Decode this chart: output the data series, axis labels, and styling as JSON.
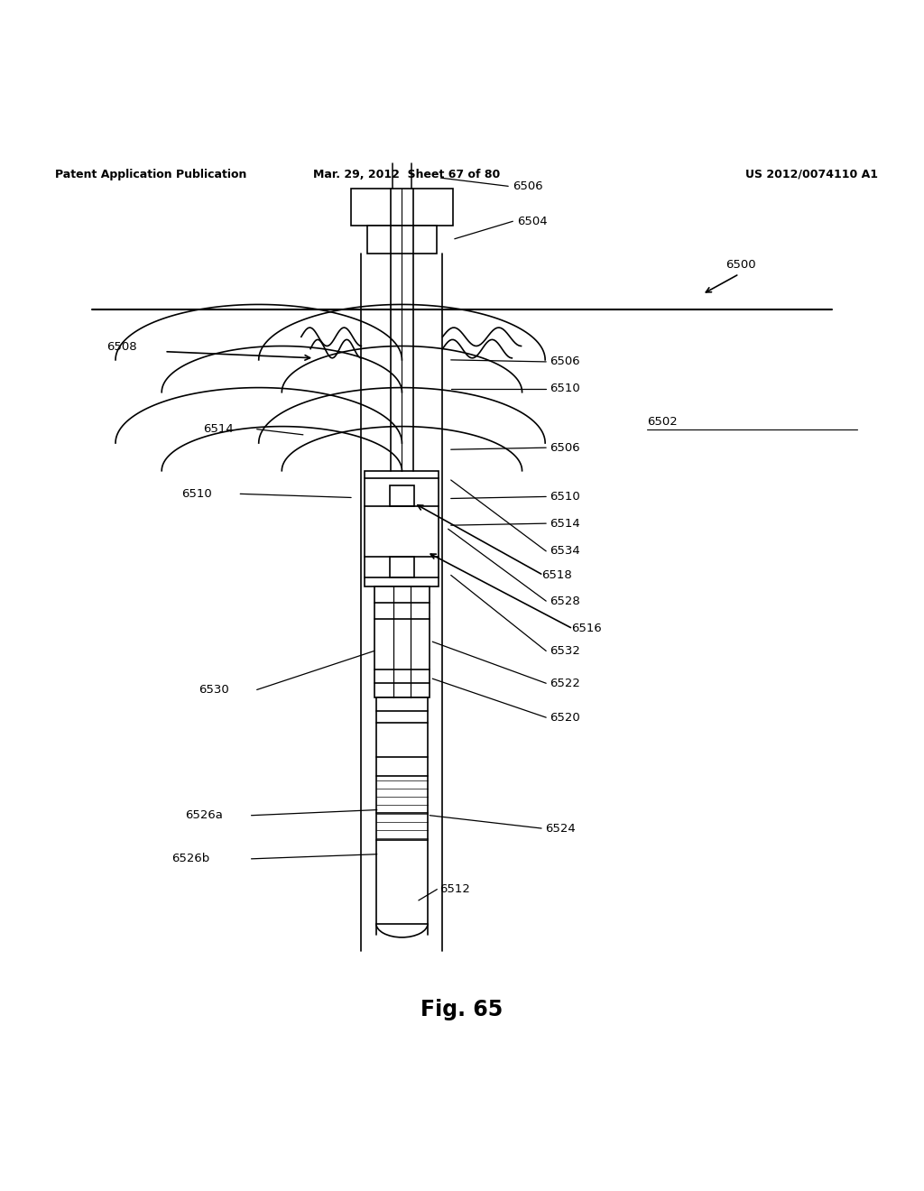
{
  "title": "Fig. 65",
  "header_left": "Patent Application Publication",
  "header_mid": "Mar. 29, 2012  Sheet 67 of 80",
  "header_right": "US 2012/0074110 A1",
  "bg_color": "#ffffff",
  "line_color": "#000000"
}
